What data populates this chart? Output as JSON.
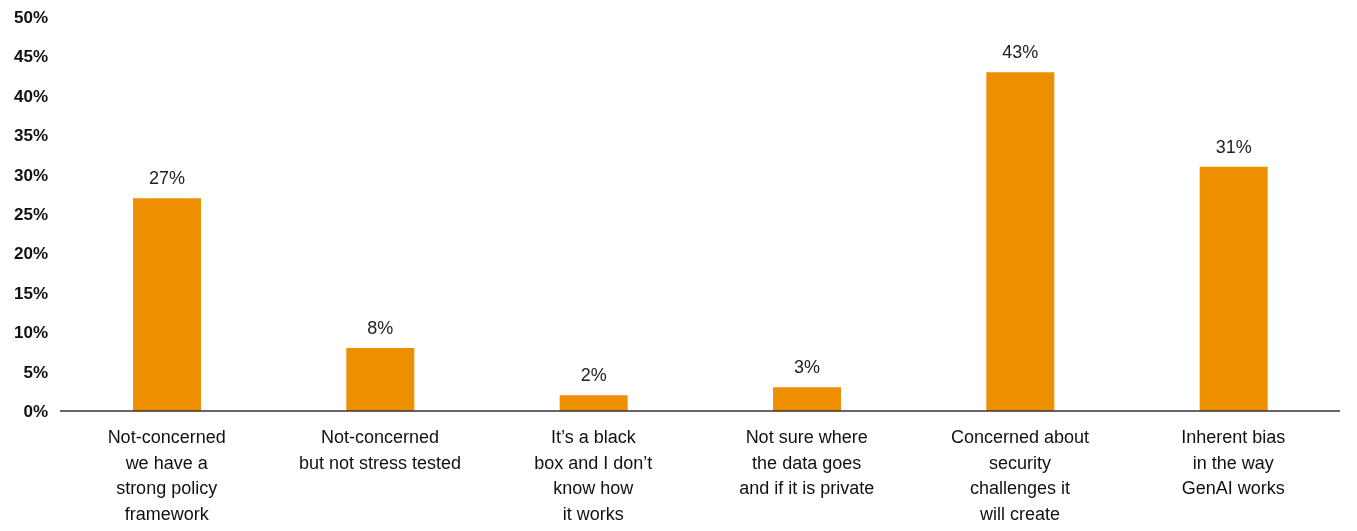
{
  "chart_data": {
    "type": "bar",
    "categories": [
      "Not-concerned\nwe have a\nstrong policy\nframework",
      "Not-concerned\nbut not stress tested",
      "It’s a black\nbox and I don’t\nknow how\nit works",
      "Not sure where\nthe data goes\nand if it is private",
      "Concerned about\nsecurity\nchallenges it\nwill create",
      "Inherent bias\nin the way\nGenAI works"
    ],
    "values": [
      27,
      8,
      2,
      3,
      43,
      31
    ],
    "value_labels": [
      "27%",
      "8%",
      "2%",
      "3%",
      "43%",
      "31%"
    ],
    "color": "#ee8f00",
    "ylim": [
      0,
      50
    ],
    "yticks": [
      {
        "value": 0,
        "label": "0%"
      },
      {
        "value": 5,
        "label": "5%"
      },
      {
        "value": 10,
        "label": "10%"
      },
      {
        "value": 15,
        "label": "15%"
      },
      {
        "value": 20,
        "label": "20%"
      },
      {
        "value": 25,
        "label": "25%"
      },
      {
        "value": 30,
        "label": "30%"
      },
      {
        "value": 35,
        "label": "35%"
      },
      {
        "value": 40,
        "label": "40%"
      },
      {
        "value": 45,
        "label": "45%"
      },
      {
        "value": 50,
        "label": "50%"
      }
    ],
    "grid": false,
    "legend": false
  }
}
